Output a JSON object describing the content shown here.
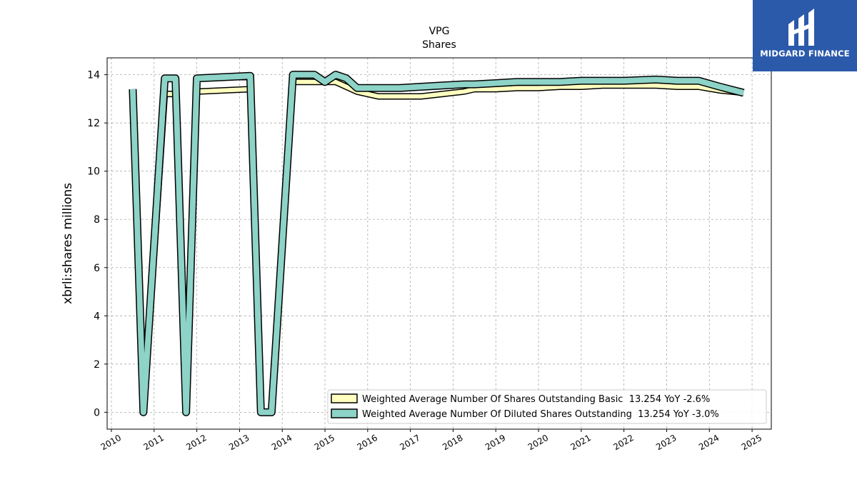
{
  "brand": {
    "name": "MIDGARD FINANCE",
    "color": "#2c5aab"
  },
  "chart_data": {
    "type": "line",
    "title": "VPG",
    "subtitle": "Shares",
    "xlabel": "",
    "ylabel": "xbrli:shares millions",
    "xlim": [
      2009.9,
      2025.45
    ],
    "ylim": [
      -0.7,
      14.7
    ],
    "yticks": [
      0,
      2,
      4,
      6,
      8,
      10,
      12,
      14
    ],
    "xticks": [
      2010,
      2011,
      2012,
      2013,
      2014,
      2015,
      2016,
      2017,
      2018,
      2019,
      2020,
      2021,
      2022,
      2023,
      2024,
      2025
    ],
    "grid": true,
    "legend_position": "lower-right",
    "series": [
      {
        "name": "Weighted Average Number Of Shares Outstanding Basic  13.254 YoY -2.6%",
        "color": "#ffffc0",
        "x": [
          2010.5,
          2010.75,
          2011.25,
          2011.5,
          2011.75,
          2012.0,
          2013.25,
          2013.5,
          2013.75,
          2014.25,
          2014.75,
          2015.0,
          2015.25,
          2015.5,
          2015.75,
          2016.25,
          2016.75,
          2017.25,
          2017.75,
          2018.25,
          2018.5,
          2019.0,
          2019.5,
          2020.0,
          2020.5,
          2021.0,
          2021.5,
          2022.0,
          2022.75,
          2023.25,
          2023.75,
          2024.25,
          2024.8
        ],
        "y": [
          13.4,
          0.0,
          13.2,
          13.2,
          0.0,
          13.3,
          13.4,
          0.0,
          0.0,
          13.7,
          13.7,
          13.7,
          13.7,
          13.5,
          13.3,
          13.1,
          13.1,
          13.1,
          13.2,
          13.3,
          13.4,
          13.4,
          13.45,
          13.45,
          13.5,
          13.5,
          13.55,
          13.55,
          13.55,
          13.5,
          13.5,
          13.35,
          13.25
        ]
      },
      {
        "name": "Weighted Average Number Of Diluted Shares Outstanding  13.254 YoY -3.0%",
        "color": "#8dd3c7",
        "x": [
          2010.5,
          2010.75,
          2011.25,
          2011.5,
          2011.75,
          2012.0,
          2013.25,
          2013.5,
          2013.75,
          2014.25,
          2014.75,
          2015.0,
          2015.25,
          2015.5,
          2015.75,
          2016.25,
          2016.75,
          2017.25,
          2017.75,
          2018.25,
          2018.5,
          2019.0,
          2019.5,
          2020.0,
          2020.5,
          2021.0,
          2021.5,
          2022.0,
          2022.75,
          2023.25,
          2023.75,
          2024.25,
          2024.8
        ],
        "y": [
          13.4,
          0.0,
          13.85,
          13.85,
          0.0,
          13.85,
          13.95,
          0.0,
          0.0,
          14.0,
          14.0,
          13.7,
          14.0,
          13.85,
          13.45,
          13.45,
          13.45,
          13.5,
          13.55,
          13.6,
          13.6,
          13.65,
          13.7,
          13.7,
          13.7,
          13.75,
          13.75,
          13.75,
          13.8,
          13.75,
          13.75,
          13.5,
          13.25
        ]
      }
    ]
  }
}
